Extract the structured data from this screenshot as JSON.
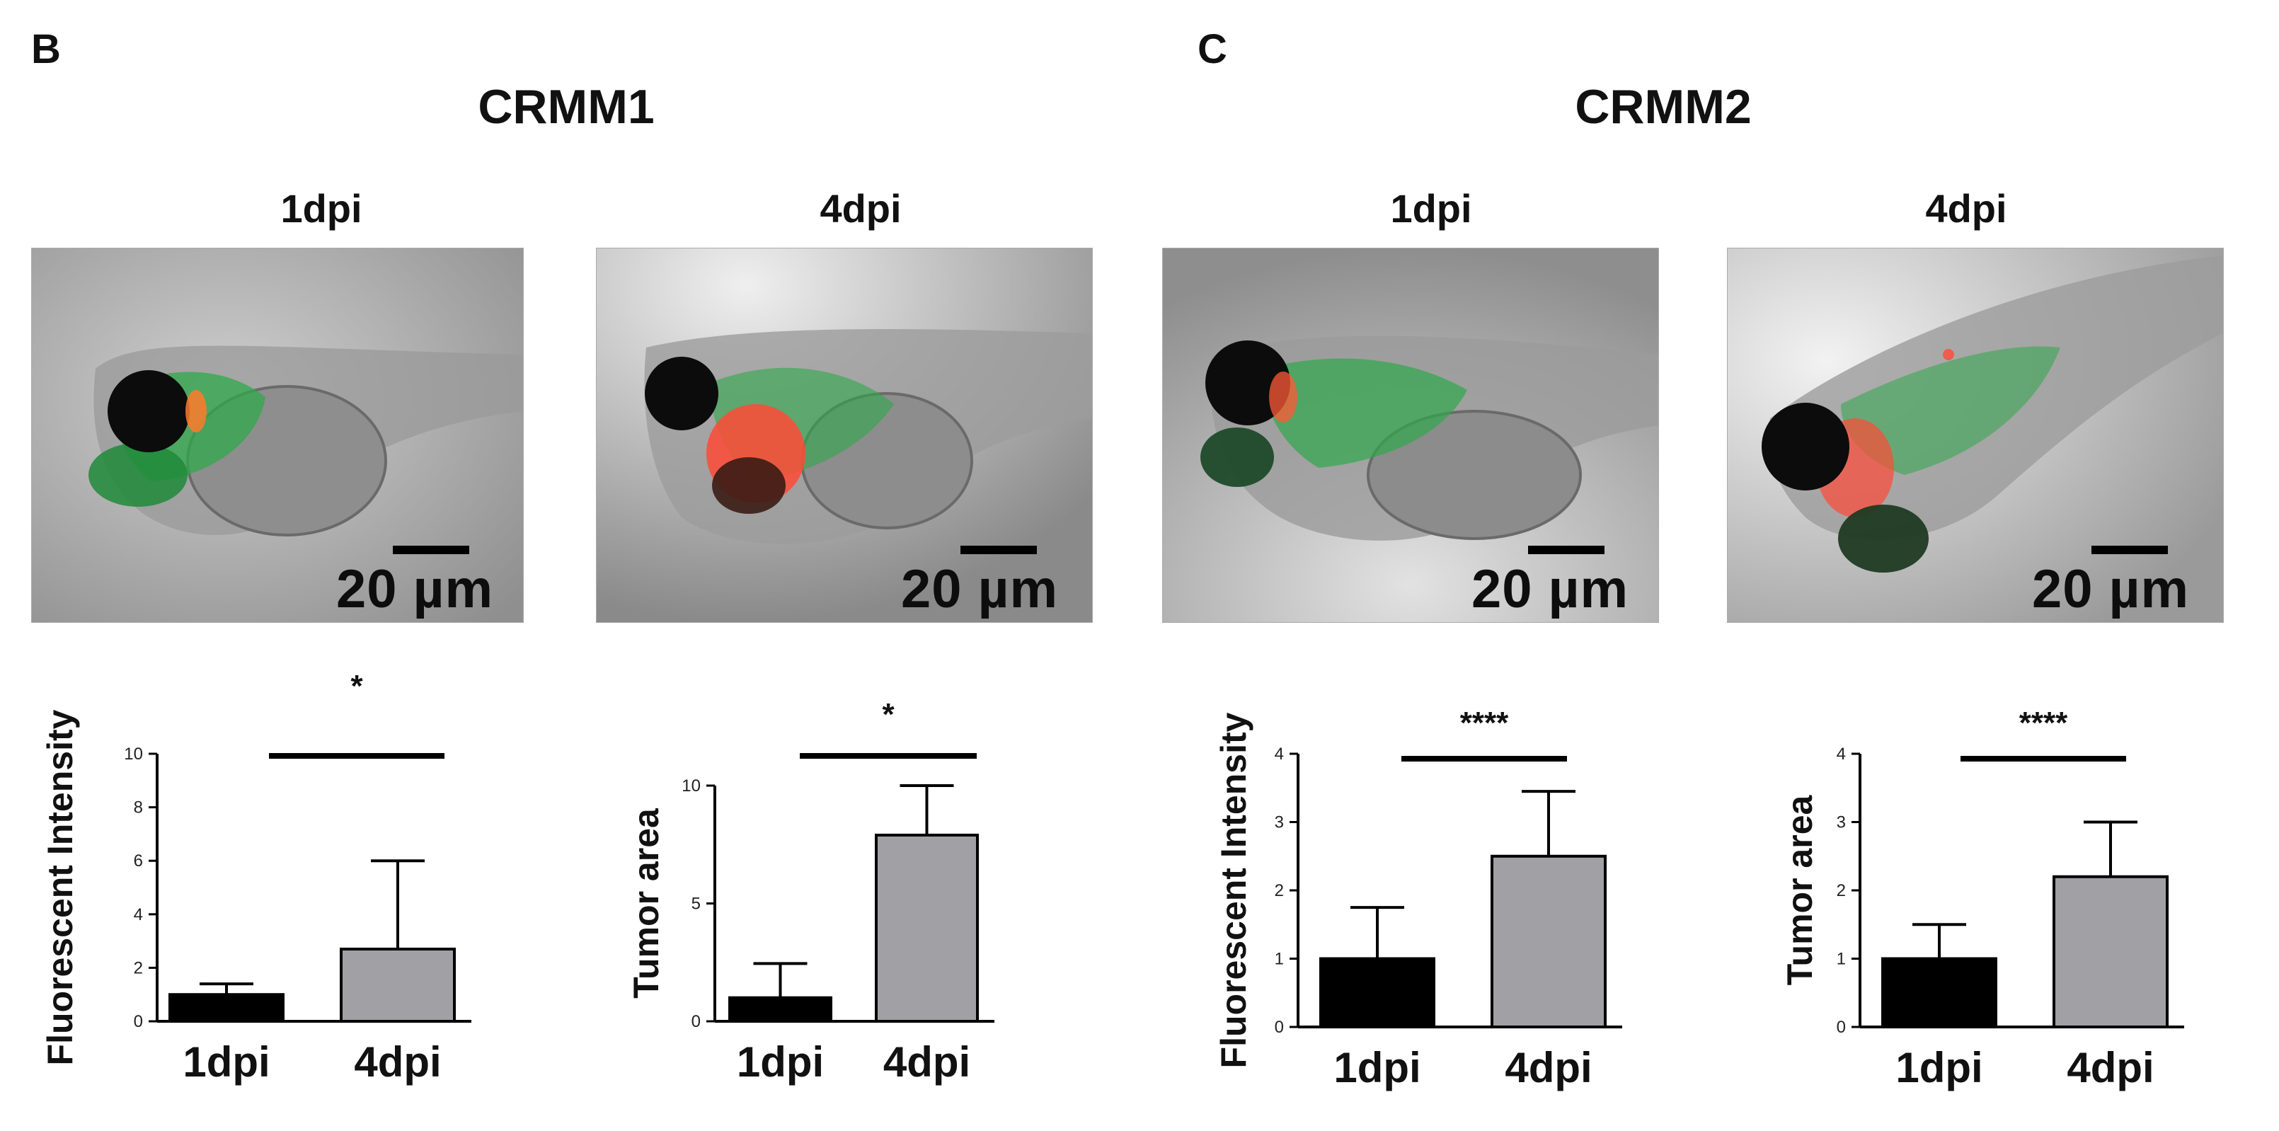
{
  "panels": [
    {
      "letter": "B",
      "title": "CRMM1"
    },
    {
      "letter": "C",
      "title": "CRMM2"
    }
  ],
  "image_labels": [
    "1dpi",
    "4dpi",
    "1dpi",
    "4dpi"
  ],
  "scale_bar_label": "20 µm",
  "colors": {
    "bar_1dpi": "#000000",
    "bar_4dpi": "#a1a0a4",
    "fluor_green": "#2fa84b",
    "fluor_red": "#ff4a36",
    "micro_bg": "#b5b5b5"
  },
  "chart_data": [
    {
      "type": "bar",
      "ylabel": "Fluorescent Intensity",
      "categories": [
        "1dpi",
        "4dpi"
      ],
      "values": [
        1.0,
        2.7
      ],
      "errors": [
        0.4,
        3.3
      ],
      "ylim": [
        0,
        10
      ],
      "yticks": [
        "0",
        "2",
        "4",
        "6",
        "8",
        "10"
      ],
      "significance": "*"
    },
    {
      "type": "bar",
      "ylabel": "Tumor area",
      "categories": [
        "1dpi",
        "4dpi"
      ],
      "values": [
        1.0,
        7.9
      ],
      "errors": [
        1.45,
        2.1
      ],
      "ylim": [
        0,
        10
      ],
      "yticks": [
        "0",
        "5",
        "10"
      ],
      "significance": "*"
    },
    {
      "type": "bar",
      "ylabel": "Fluorescent Intensity",
      "categories": [
        "1dpi",
        "4dpi"
      ],
      "values": [
        1.0,
        2.5
      ],
      "errors": [
        0.75,
        0.95
      ],
      "ylim": [
        0,
        4
      ],
      "yticks": [
        "0",
        "1",
        "2",
        "3",
        "4"
      ],
      "significance": "****"
    },
    {
      "type": "bar",
      "ylabel": "Tumor area",
      "categories": [
        "1dpi",
        "4dpi"
      ],
      "values": [
        1.0,
        2.2
      ],
      "errors": [
        0.5,
        0.8
      ],
      "ylim": [
        0,
        4
      ],
      "yticks": [
        "0",
        "1",
        "2",
        "3",
        "4"
      ],
      "significance": "****"
    }
  ]
}
